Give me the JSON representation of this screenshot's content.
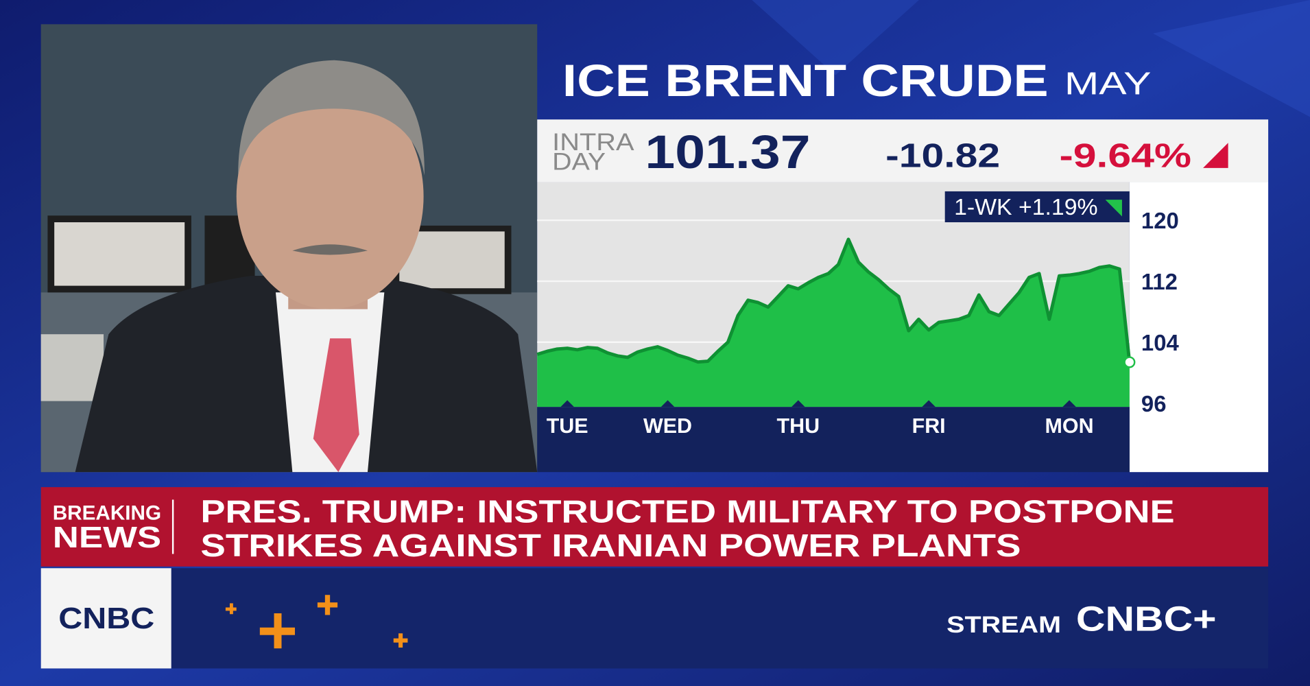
{
  "header": {
    "title": "ICE BRENT CRUDE",
    "contract": "MAY"
  },
  "quote": {
    "label_line1": "INTRA",
    "label_line2": "DAY",
    "price": "101.37",
    "change": "-10.82",
    "percent_change": "-9.64%"
  },
  "chart_data": {
    "type": "area",
    "annotation": "1-WK +1.19%",
    "categories": [
      null,
      null,
      null,
      "TUE",
      null,
      null,
      null,
      null,
      null,
      null,
      null,
      null,
      null,
      "WED",
      null,
      null,
      null,
      null,
      null,
      null,
      null,
      null,
      null,
      null,
      null,
      null,
      "THU",
      null,
      null,
      null,
      null,
      null,
      null,
      null,
      null,
      null,
      null,
      null,
      null,
      "FRI",
      null,
      null,
      null,
      null,
      null,
      null,
      null,
      null,
      null,
      null,
      null,
      null,
      null,
      "MON",
      null,
      null,
      null,
      null,
      null,
      null
    ],
    "series": [
      {
        "color": "#1fbf48",
        "values": [
          102.4,
          102.8,
          103.1,
          103.2,
          103.0,
          103.3,
          103.2,
          102.6,
          102.2,
          102.0,
          102.7,
          103.1,
          103.4,
          102.9,
          102.3,
          101.9,
          101.4,
          101.5,
          102.8,
          104.0,
          107.5,
          109.5,
          109.2,
          108.6,
          110.0,
          111.4,
          111.0,
          111.8,
          112.5,
          113.0,
          114.2,
          117.5,
          114.5,
          113.2,
          112.2,
          111.0,
          110.0,
          105.5,
          107.0,
          105.6,
          106.6,
          106.8,
          107.0,
          107.5,
          110.2,
          108.0,
          107.5,
          109.0,
          110.5,
          112.5,
          113.0,
          107.0,
          112.7,
          112.8,
          113.0,
          113.3,
          113.8,
          114.0,
          113.6,
          101.37
        ]
      }
    ],
    "ylim": [
      95.5,
      125
    ],
    "yticks": [
      96,
      104,
      112,
      120
    ],
    "grid": true
  },
  "breaking_news": {
    "label_line1": "BREAKING",
    "label_line2": "NEWS",
    "headline_line1": "PRES. TRUMP: INSTRUCTED MILITARY TO POSTPONE",
    "headline_line2": "STRIKES AGAINST IRANIAN POWER PLANTS"
  },
  "footer": {
    "logo": "CNBC",
    "stream": "STREAM",
    "stream_logo": "CNBC+"
  }
}
